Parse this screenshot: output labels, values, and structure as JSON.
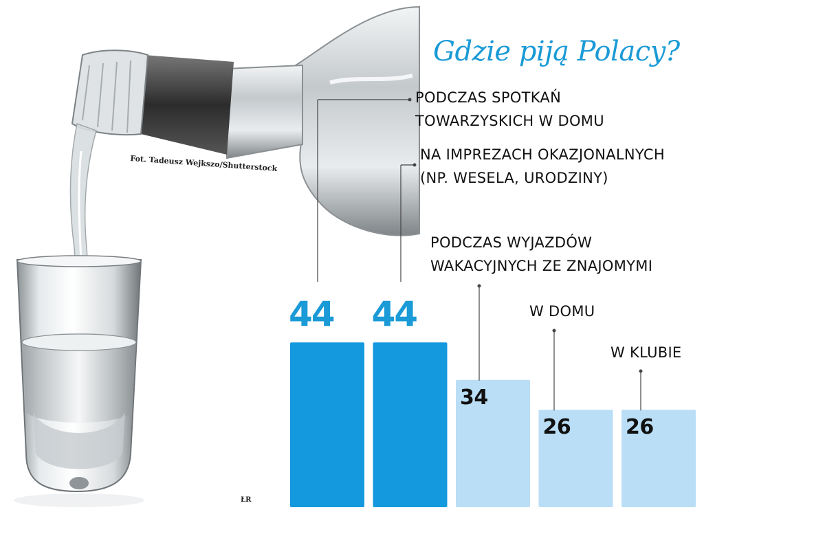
{
  "header": {
    "title": "Gdzie piją Polacy?",
    "photo_credit": "Fot. Tadeusz Wejkszo/Shutterstock",
    "source": "ŁR"
  },
  "colors": {
    "accent": "#1a9ad6",
    "bar_highlight": "#1599de",
    "bar_light": "#b9def5",
    "leader": "#444444"
  },
  "illustration": {
    "subject": "vodka-bottle-pouring-into-shot-glass"
  },
  "chart_data": {
    "type": "bar",
    "title": "Gdzie piją Polacy?",
    "categories": [
      [
        "PODCZAS SPOTKAŃ",
        "TOWARZYSKICH W DOMU"
      ],
      [
        "NA IMPREZACH OKAZJONALNYCH",
        "(NP. WESELA, URODZINY)"
      ],
      [
        "PODCZAS WYJAZDÓW",
        "WAKACYJNYCH ZE ZNAJOMYMI"
      ],
      [
        "W DOMU"
      ],
      [
        "W KLUBIE"
      ]
    ],
    "values": [
      44,
      44,
      34,
      26,
      26
    ],
    "highlighted": [
      true,
      true,
      false,
      false,
      false
    ],
    "xlabel": "",
    "ylabel": "",
    "grid": false,
    "legend": "none"
  }
}
